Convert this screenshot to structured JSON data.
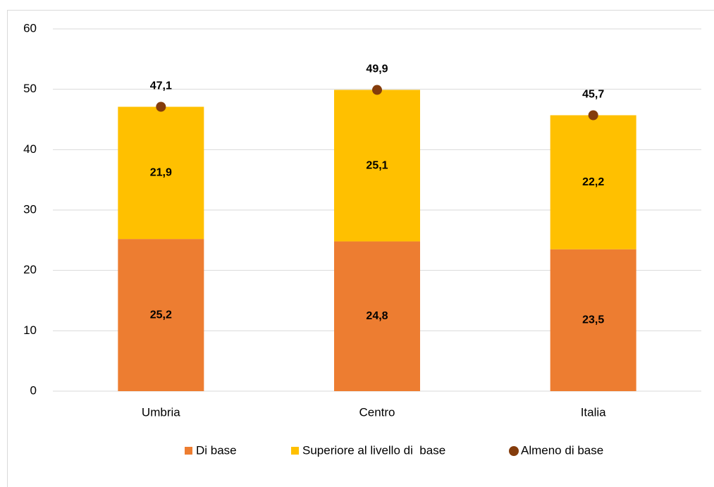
{
  "chart_data": {
    "type": "bar",
    "stacked": true,
    "categories": [
      "Umbria",
      "Centro",
      "Italia"
    ],
    "series": [
      {
        "name": "Di base",
        "color": "#ed7d31",
        "values": [
          25.2,
          24.8,
          23.5
        ],
        "value_labels": [
          "25,2",
          "24,8",
          "23,5"
        ]
      },
      {
        "name": "Superiore al livello di  base",
        "color": "#ffc000",
        "values": [
          21.9,
          25.1,
          22.2
        ],
        "value_labels": [
          "21,9",
          "25,1",
          "22,2"
        ]
      },
      {
        "name": "Almeno di base",
        "type": "scatter",
        "color": "#843c0c",
        "values": [
          47.1,
          49.9,
          45.7
        ],
        "value_labels": [
          "47,1",
          "49,9",
          "45,7"
        ]
      }
    ],
    "ylim": [
      0,
      60
    ],
    "yticks": [
      0,
      10,
      20,
      30,
      40,
      50,
      60
    ],
    "grid": true,
    "legend": "bottom"
  }
}
